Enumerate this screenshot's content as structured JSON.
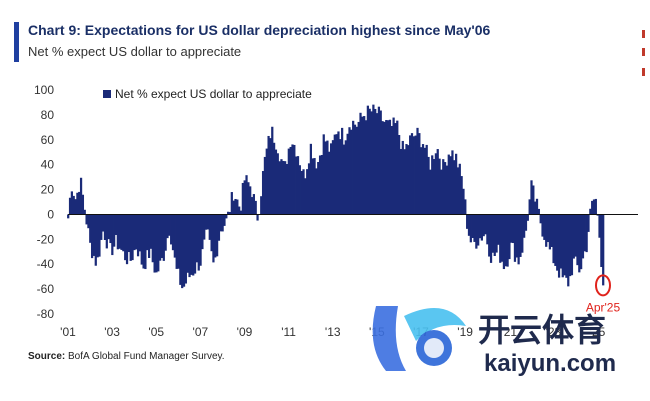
{
  "header": {
    "title": "Chart 9: Expectations for US dollar depreciation highest since May'06",
    "subtitle": "Net % expect US dollar to appreciate"
  },
  "footer": {
    "source_label": "Source:",
    "source_text": "BofA Global Fund Manager Survey."
  },
  "watermark": {
    "brand": "开云体育",
    "site": "kaiyun.com"
  },
  "colors": {
    "bar": "#1a2a78",
    "accent": "#1f3fa0",
    "highlight": "#e0231c",
    "axis": "#333333"
  },
  "chart_data": {
    "type": "bar",
    "title": "",
    "xlabel": "",
    "ylabel": "",
    "ylim": [
      -80,
      100
    ],
    "yticks": [
      100,
      80,
      60,
      40,
      20,
      0,
      -20,
      -40,
      -60,
      -80
    ],
    "xticks": [
      "'01",
      "'03",
      "'05",
      "'07",
      "'09",
      "'11",
      "'13",
      "'15",
      "'17",
      "'19",
      "'21",
      "'23",
      "'25"
    ],
    "x_start_year": 2001,
    "legend": {
      "text": "Net % expect US dollar to appreciate",
      "position": "top-left"
    },
    "annotation": {
      "text": "Apr'25",
      "value": -57
    },
    "series": [
      {
        "name": "Net % expect US dollar to appreciate",
        "anchors": [
          [
            2001.0,
            -3
          ],
          [
            2001.15,
            25
          ],
          [
            2001.35,
            12
          ],
          [
            2001.55,
            28
          ],
          [
            2001.75,
            5
          ],
          [
            2002.0,
            -25
          ],
          [
            2002.3,
            -40
          ],
          [
            2002.6,
            -12
          ],
          [
            2002.9,
            -30
          ],
          [
            2003.2,
            -22
          ],
          [
            2003.5,
            -32
          ],
          [
            2003.8,
            -38
          ],
          [
            2004.1,
            -25
          ],
          [
            2004.4,
            -42
          ],
          [
            2004.7,
            -30
          ],
          [
            2005.0,
            -48
          ],
          [
            2005.3,
            -35
          ],
          [
            2005.6,
            -10
          ],
          [
            2005.9,
            -45
          ],
          [
            2006.2,
            -60
          ],
          [
            2006.4,
            -52
          ],
          [
            2006.7,
            -45
          ],
          [
            2007.0,
            -38
          ],
          [
            2007.3,
            -15
          ],
          [
            2007.6,
            -42
          ],
          [
            2007.9,
            -12
          ],
          [
            2008.2,
            -5
          ],
          [
            2008.5,
            18
          ],
          [
            2008.8,
            5
          ],
          [
            2009.0,
            28
          ],
          [
            2009.3,
            22
          ],
          [
            2009.6,
            -3
          ],
          [
            2009.9,
            42
          ],
          [
            2010.2,
            68
          ],
          [
            2010.5,
            55
          ],
          [
            2010.8,
            35
          ],
          [
            2011.1,
            62
          ],
          [
            2011.4,
            50
          ],
          [
            2011.7,
            30
          ],
          [
            2012.0,
            55
          ],
          [
            2012.3,
            40
          ],
          [
            2012.6,
            62
          ],
          [
            2012.9,
            50
          ],
          [
            2013.2,
            70
          ],
          [
            2013.5,
            62
          ],
          [
            2013.8,
            75
          ],
          [
            2014.1,
            72
          ],
          [
            2014.4,
            80
          ],
          [
            2014.7,
            83
          ],
          [
            2015.0,
            82
          ],
          [
            2015.3,
            75
          ],
          [
            2015.6,
            70
          ],
          [
            2015.9,
            72
          ],
          [
            2016.2,
            50
          ],
          [
            2016.5,
            60
          ],
          [
            2016.8,
            65
          ],
          [
            2017.1,
            58
          ],
          [
            2017.4,
            40
          ],
          [
            2017.7,
            55
          ],
          [
            2018.0,
            38
          ],
          [
            2018.3,
            52
          ],
          [
            2018.6,
            45
          ],
          [
            2018.9,
            25
          ],
          [
            2019.1,
            -10
          ],
          [
            2019.3,
            -25
          ],
          [
            2019.6,
            -20
          ],
          [
            2019.9,
            -15
          ],
          [
            2020.2,
            -35
          ],
          [
            2020.5,
            -30
          ],
          [
            2020.8,
            -42
          ],
          [
            2021.1,
            -25
          ],
          [
            2021.4,
            -38
          ],
          [
            2021.7,
            -20
          ],
          [
            2022.0,
            22
          ],
          [
            2022.2,
            10
          ],
          [
            2022.5,
            -12
          ],
          [
            2022.8,
            -28
          ],
          [
            2023.1,
            -40
          ],
          [
            2023.4,
            -52
          ],
          [
            2023.7,
            -55
          ],
          [
            2023.9,
            -38
          ],
          [
            2024.2,
            -45
          ],
          [
            2024.5,
            -25
          ],
          [
            2024.7,
            5
          ],
          [
            2024.9,
            15
          ],
          [
            2025.1,
            -20
          ],
          [
            2025.25,
            -57
          ]
        ]
      }
    ]
  }
}
